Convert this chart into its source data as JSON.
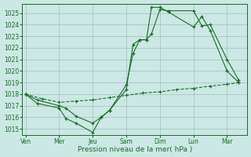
{
  "title": "",
  "xlabel": "Pression niveau de la mer( hPa )",
  "background_color": "#cce8e4",
  "grid_color": "#9fbfbb",
  "line_color": "#1a6b2a",
  "ylim": [
    1014.5,
    1025.8
  ],
  "yticks": [
    1015,
    1016,
    1017,
    1018,
    1019,
    1020,
    1021,
    1022,
    1023,
    1024,
    1025
  ],
  "x_labels": [
    "Ven",
    "Mer",
    "Jeu",
    "Sam",
    "Dim",
    "Lun",
    "Mar"
  ],
  "x_positions": [
    0,
    1,
    2,
    3,
    4,
    5,
    6
  ],
  "xlim": [
    -0.1,
    6.6
  ],
  "line1_x": [
    0,
    0.35,
    1.0,
    1.2,
    1.5,
    2.0,
    2.25,
    2.5,
    3.0,
    3.2,
    3.4,
    3.6,
    3.75,
    4.0,
    4.25,
    5.0,
    5.25,
    5.5,
    6.0,
    6.35
  ],
  "line1_y": [
    1018.0,
    1017.5,
    1017.0,
    1016.8,
    1016.1,
    1015.5,
    1016.0,
    1016.6,
    1018.8,
    1021.5,
    1022.7,
    1022.7,
    1023.2,
    1025.3,
    1025.2,
    1025.2,
    1023.9,
    1024.0,
    1021.0,
    1019.2
  ],
  "line2_x": [
    0,
    0.35,
    1.0,
    1.2,
    1.5,
    2.0,
    2.25,
    2.5,
    3.0,
    3.2,
    3.4,
    3.6,
    3.75,
    4.0,
    4.25,
    5.0,
    5.25,
    5.5,
    6.0,
    6.35
  ],
  "line2_y": [
    1018.0,
    1017.2,
    1016.8,
    1015.9,
    1015.5,
    1014.7,
    1016.0,
    1016.6,
    1018.4,
    1022.3,
    1022.7,
    1022.7,
    1025.5,
    1025.5,
    1025.1,
    1023.8,
    1024.7,
    1023.5,
    1020.0,
    1019.0
  ],
  "line3_x": [
    0,
    0.5,
    1.0,
    1.5,
    2.0,
    2.5,
    3.0,
    3.5,
    4.0,
    4.5,
    5.0,
    5.5,
    6.0,
    6.35
  ],
  "line3_y": [
    1018.0,
    1017.6,
    1017.3,
    1017.4,
    1017.5,
    1017.7,
    1017.9,
    1018.1,
    1018.2,
    1018.4,
    1018.5,
    1018.7,
    1018.85,
    1019.0
  ]
}
